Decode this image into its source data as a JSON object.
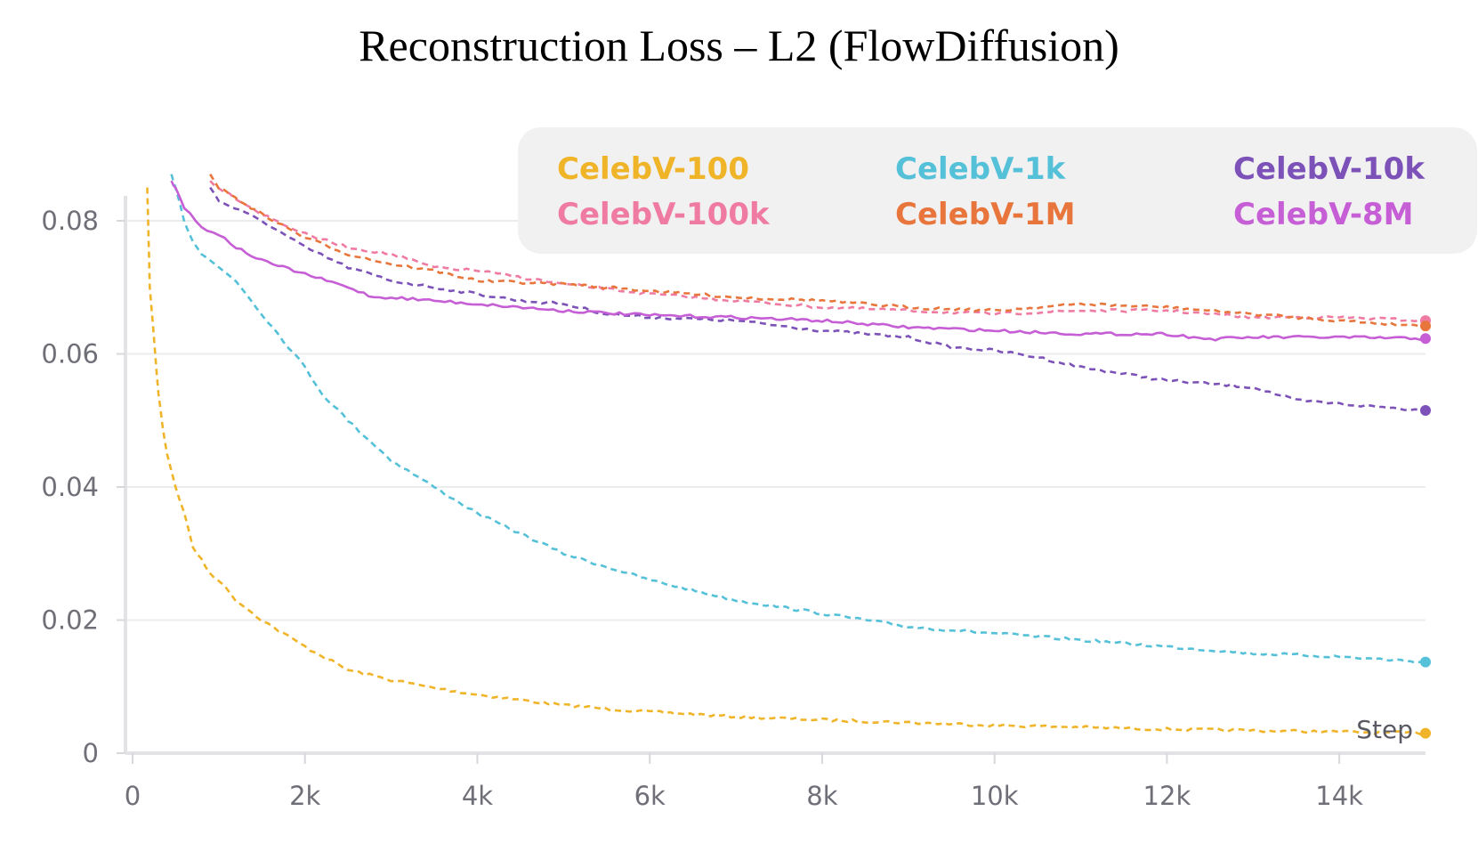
{
  "chart_data": {
    "type": "line",
    "title": "Reconstruction Loss – L2 (FlowDiffusion)",
    "xlabel": "Step",
    "ylabel": "",
    "xlim": [
      0,
      15000
    ],
    "ylim": [
      0,
      0.085
    ],
    "x_ticks": [
      0,
      2000,
      4000,
      6000,
      8000,
      10000,
      12000,
      14000
    ],
    "x_tick_labels": [
      "0",
      "2k",
      "4k",
      "6k",
      "8k",
      "10k",
      "12k",
      "14k"
    ],
    "y_ticks": [
      0,
      0.02,
      0.04,
      0.06,
      0.08
    ],
    "y_tick_labels": [
      "0",
      "0.02",
      "0.04",
      "0.06",
      "0.08"
    ],
    "grid": true,
    "legend": "top-right",
    "series": [
      {
        "name": "CelebV-100",
        "color": "#f0b429",
        "dash": true,
        "x": [
          170,
          200,
          250,
          300,
          350,
          400,
          500,
          600,
          700,
          800,
          900,
          1000,
          1200,
          1500,
          2000,
          2500,
          3000,
          3500,
          4000,
          5000,
          6000,
          7000,
          8000,
          9000,
          10000,
          11000,
          12000,
          13000,
          14000,
          15000
        ],
        "y": [
          0.085,
          0.07,
          0.062,
          0.054,
          0.049,
          0.045,
          0.04,
          0.036,
          0.031,
          0.029,
          0.027,
          0.026,
          0.023,
          0.02,
          0.016,
          0.0125,
          0.011,
          0.0098,
          0.0088,
          0.0072,
          0.0062,
          0.0055,
          0.005,
          0.0046,
          0.0042,
          0.0039,
          0.0036,
          0.0034,
          0.0032,
          0.003
        ]
      },
      {
        "name": "CelebV-1k",
        "color": "#55c1d8",
        "dash": true,
        "x": [
          450,
          500,
          600,
          700,
          800,
          1000,
          1200,
          1500,
          2000,
          2200,
          2500,
          3000,
          3500,
          4000,
          4500,
          5000,
          6000,
          7000,
          8000,
          9000,
          10000,
          11000,
          12000,
          13000,
          14000,
          15000
        ],
        "y": [
          0.087,
          0.085,
          0.08,
          0.077,
          0.075,
          0.073,
          0.071,
          0.066,
          0.058,
          0.054,
          0.05,
          0.044,
          0.04,
          0.036,
          0.033,
          0.03,
          0.026,
          0.023,
          0.021,
          0.019,
          0.018,
          0.017,
          0.016,
          0.015,
          0.0145,
          0.0137
        ]
      },
      {
        "name": "CelebV-10k",
        "color": "#7c52b8",
        "dash": true,
        "x": [
          900,
          1000,
          1500,
          2000,
          2500,
          3000,
          3500,
          4000,
          4500,
          5000,
          5500,
          6000,
          7000,
          8000,
          9000,
          9500,
          10000,
          10500,
          11000,
          12000,
          12500,
          13000,
          13500,
          14000,
          14500,
          15000
        ],
        "y": [
          0.085,
          0.083,
          0.08,
          0.076,
          0.073,
          0.071,
          0.07,
          0.069,
          0.068,
          0.0675,
          0.066,
          0.0655,
          0.065,
          0.0635,
          0.0625,
          0.061,
          0.0605,
          0.0595,
          0.058,
          0.056,
          0.0555,
          0.055,
          0.053,
          0.0525,
          0.052,
          0.0515
        ]
      },
      {
        "name": "CelebV-100k",
        "color": "#ef7ba3",
        "dash": true,
        "x": [
          900,
          1000,
          1500,
          2000,
          2500,
          3000,
          3500,
          4000,
          5000,
          6000,
          7000,
          8000,
          9000,
          10000,
          11000,
          12000,
          13000,
          14000,
          15000
        ],
        "y": [
          0.086,
          0.085,
          0.081,
          0.078,
          0.076,
          0.075,
          0.073,
          0.0725,
          0.0705,
          0.069,
          0.068,
          0.067,
          0.0665,
          0.066,
          0.0665,
          0.0665,
          0.0655,
          0.0655,
          0.065
        ]
      },
      {
        "name": "CelebV-1M",
        "color": "#e8763c",
        "dash": true,
        "x": [
          900,
          1000,
          1500,
          2000,
          2500,
          3000,
          3500,
          4000,
          5000,
          6000,
          7000,
          8000,
          9000,
          10000,
          11000,
          12000,
          13000,
          14000,
          15000
        ],
        "y": [
          0.087,
          0.085,
          0.081,
          0.0775,
          0.075,
          0.0735,
          0.0725,
          0.071,
          0.0705,
          0.0695,
          0.0685,
          0.068,
          0.067,
          0.0665,
          0.0675,
          0.067,
          0.066,
          0.065,
          0.0642
        ]
      },
      {
        "name": "CelebV-8M",
        "color": "#c65ed5",
        "dash": false,
        "x": [
          450,
          500,
          600,
          800,
          1000,
          1200,
          1500,
          2000,
          2500,
          2800,
          3000,
          3500,
          4000,
          5000,
          6000,
          7000,
          8000,
          9000,
          10000,
          11000,
          12000,
          12500,
          13000,
          14000,
          15000
        ],
        "y": [
          0.086,
          0.085,
          0.082,
          0.079,
          0.078,
          0.076,
          0.074,
          0.072,
          0.07,
          0.0685,
          0.0685,
          0.068,
          0.0675,
          0.0665,
          0.0658,
          0.0655,
          0.065,
          0.064,
          0.0635,
          0.063,
          0.063,
          0.0622,
          0.0625,
          0.0625,
          0.0623
        ]
      }
    ]
  }
}
